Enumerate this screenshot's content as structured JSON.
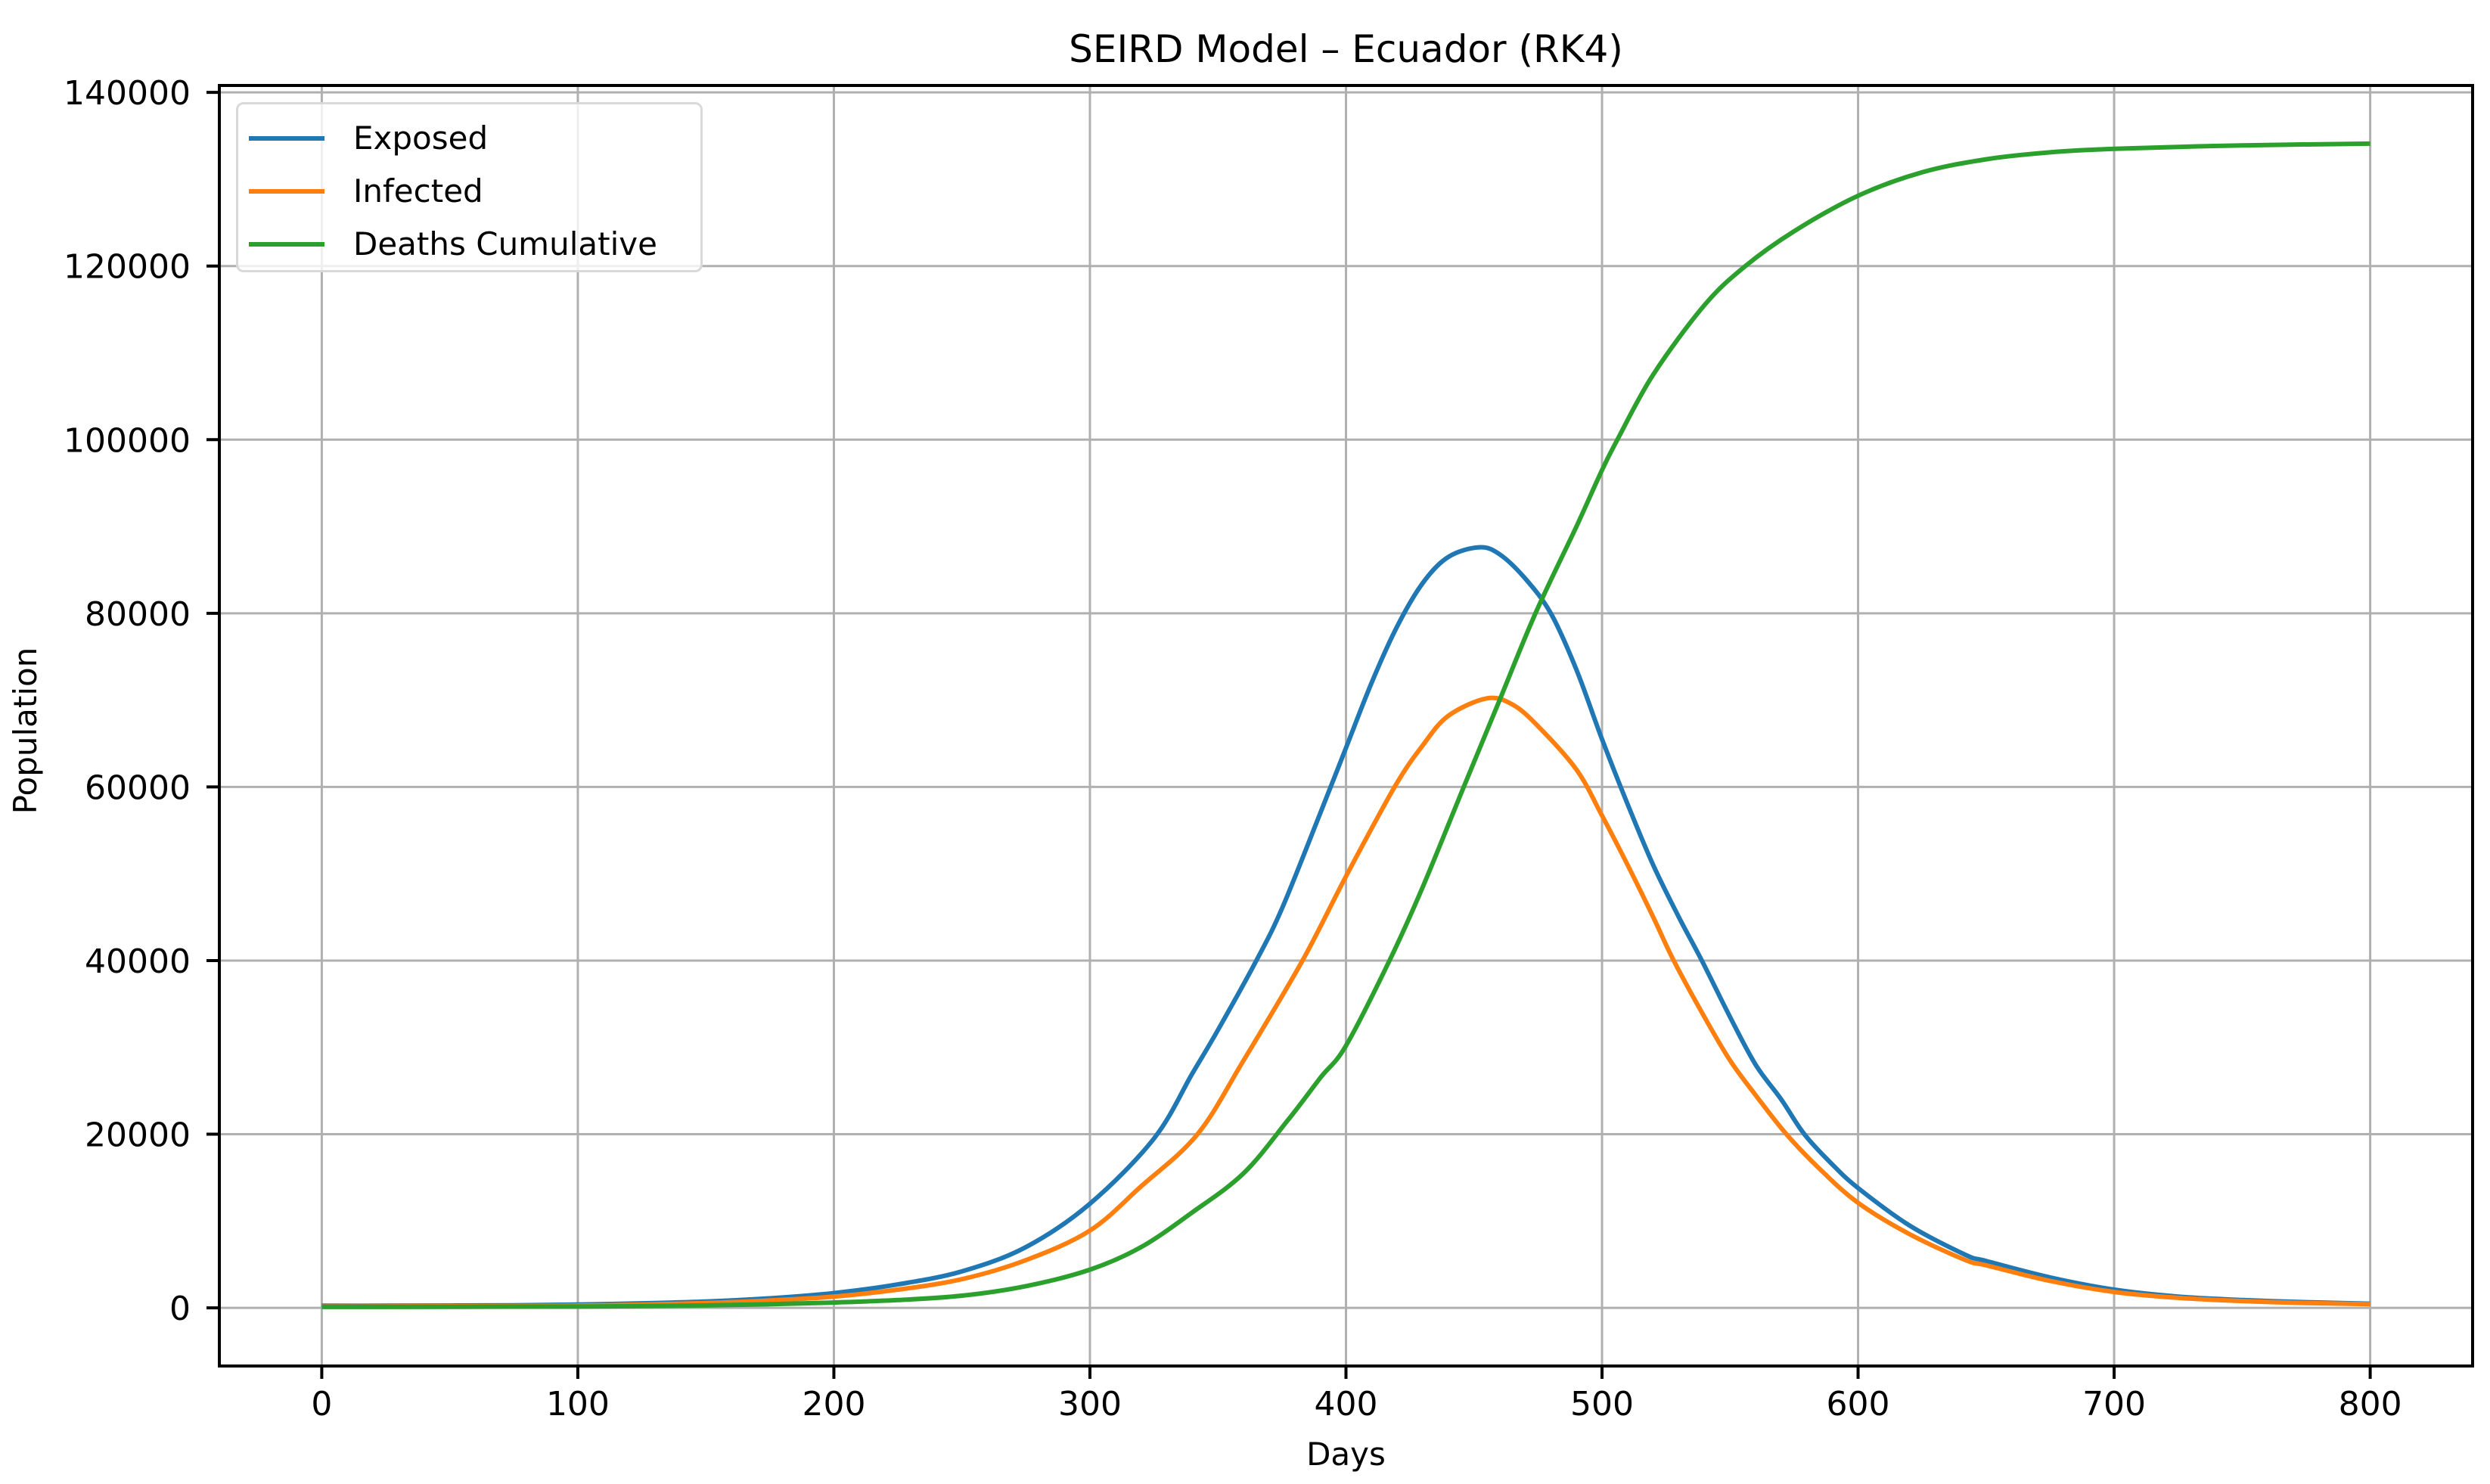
{
  "chart_data": {
    "type": "line",
    "title": "SEIRD Model – Ecuador (RK4)",
    "xlabel": "Days",
    "ylabel": "Population",
    "xlim": [
      -40,
      840
    ],
    "ylim": [
      -6700,
      140800
    ],
    "x_ticks": [
      0,
      100,
      200,
      300,
      400,
      500,
      600,
      700,
      800
    ],
    "y_ticks": [
      0,
      20000,
      40000,
      60000,
      80000,
      100000,
      120000,
      140000
    ],
    "x_tick_labels": [
      "0",
      "100",
      "200",
      "300",
      "400",
      "500",
      "600",
      "700",
      "800"
    ],
    "y_tick_labels": [
      "0",
      "20000",
      "40000",
      "60000",
      "80000",
      "100000",
      "120000",
      "140000"
    ],
    "grid": true,
    "legend_position": "upper left",
    "series": [
      {
        "name": "Exposed",
        "color": "#1f77b4",
        "x": [
          0,
          25,
          50,
          75,
          100,
          125,
          150,
          175,
          200,
          225,
          250,
          275,
          300,
          325,
          340,
          350,
          365,
          375,
          390,
          400,
          410,
          420,
          430,
          440,
          452,
          460,
          470,
          480,
          490,
          500,
          510,
          520,
          530,
          539,
          550,
          560,
          570,
          579,
          590,
          600,
          620,
          642,
          650,
          675,
          700,
          725,
          750,
          775,
          800
        ],
        "values": [
          250,
          240,
          260,
          300,
          380,
          520,
          720,
          1100,
          1700,
          2700,
          4200,
          7000,
          12000,
          19500,
          27000,
          32000,
          40000,
          46000,
          57000,
          64500,
          72000,
          78500,
          83500,
          86500,
          87600,
          86800,
          84000,
          80000,
          73500,
          65500,
          58000,
          51000,
          45000,
          40000,
          33500,
          28000,
          24000,
          20000,
          16500,
          13800,
          9500,
          6100,
          5400,
          3500,
          2100,
          1300,
          900,
          650,
          480
        ]
      },
      {
        "name": "Infected",
        "color": "#ff7f0e",
        "x": [
          0,
          25,
          50,
          75,
          100,
          125,
          150,
          175,
          200,
          225,
          250,
          275,
          300,
          320,
          342,
          360,
          383,
          400,
          419,
          430,
          440,
          455,
          465,
          475,
          490,
          500,
          510,
          520,
          528,
          540,
          550,
          560,
          572,
          585,
          600,
          620,
          642,
          650,
          675,
          700,
          725,
          750,
          775,
          800
        ],
        "values": [
          150,
          160,
          180,
          210,
          260,
          370,
          550,
          850,
          1300,
          2100,
          3300,
          5500,
          8900,
          14000,
          20000,
          28500,
          40000,
          49700,
          60000,
          64800,
          68200,
          70200,
          69500,
          67000,
          62000,
          56700,
          51000,
          45000,
          40000,
          33500,
          28500,
          24500,
          20000,
          16000,
          12100,
          8500,
          5500,
          4900,
          3100,
          1830,
          1150,
          780,
          560,
          430
        ]
      },
      {
        "name": "Deaths Cumulative",
        "color": "#2ca02c",
        "x": [
          0,
          25,
          50,
          75,
          100,
          125,
          150,
          175,
          200,
          225,
          250,
          275,
          300,
          320,
          340,
          360,
          377,
          390,
          400,
          417,
          430,
          446,
          460,
          474,
          490,
          500,
          506,
          520,
          540,
          556,
          575,
          600,
          625,
          650,
          675,
          700,
          750,
          800
        ],
        "values": [
          100,
          105,
          120,
          135,
          150,
          200,
          280,
          420,
          610,
          900,
          1400,
          2500,
          4400,
          7000,
          11000,
          15500,
          21500,
          26500,
          30200,
          40000,
          48500,
          60000,
          70000,
          80000,
          90000,
          96500,
          100000,
          107500,
          115500,
          120000,
          124000,
          128100,
          130800,
          132300,
          133100,
          133500,
          133900,
          134100
        ]
      }
    ],
    "annotations": {
      "exposed_peak": {
        "day": 452,
        "value": 87600
      },
      "infected_peak": {
        "day": 455,
        "value": 70200
      },
      "deaths_final": {
        "day": 800,
        "value": 134100
      }
    }
  },
  "legend": {
    "items": [
      {
        "label": "Exposed",
        "color": "#1f77b4"
      },
      {
        "label": "Infected",
        "color": "#ff7f0e"
      },
      {
        "label": "Deaths Cumulative",
        "color": "#2ca02c"
      }
    ]
  },
  "style": {
    "grid_color": "#b0b0b0",
    "axis_color": "#000000"
  }
}
